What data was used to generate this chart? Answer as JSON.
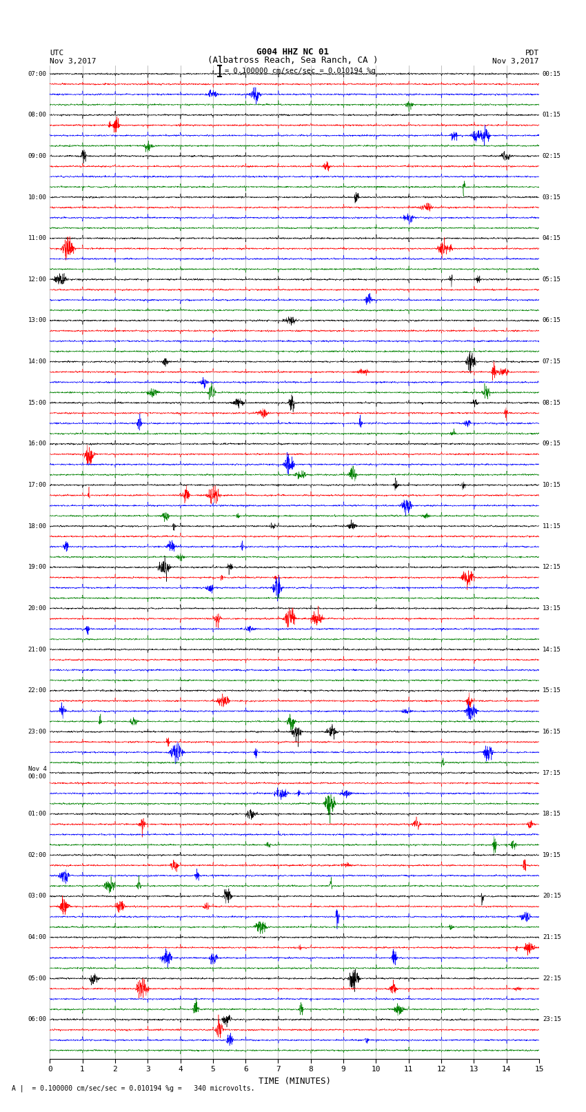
{
  "title_line1": "G004 HHZ NC 01",
  "title_line2": "(Albatross Reach, Sea Ranch, CA )",
  "scale_text": "= 0.100000 cm/sec/sec = 0.010194 %g",
  "footer_text": "= 0.100000 cm/sec/sec = 0.010194 %g =   340 microvolts.",
  "left_label_line1": "UTC",
  "left_label_line2": "Nov 3,2017",
  "right_label_line1": "PDT",
  "right_label_line2": "Nov 3,2017",
  "xlabel": "TIME (MINUTES)",
  "utc_hour_labels": [
    "07:00",
    "08:00",
    "09:00",
    "10:00",
    "11:00",
    "12:00",
    "13:00",
    "14:00",
    "15:00",
    "16:00",
    "17:00",
    "18:00",
    "19:00",
    "20:00",
    "21:00",
    "22:00",
    "23:00",
    "Nov 4\n00:00",
    "01:00",
    "02:00",
    "03:00",
    "04:00",
    "05:00",
    "06:00"
  ],
  "pdt_hour_labels": [
    "00:15",
    "01:15",
    "02:15",
    "03:15",
    "04:15",
    "05:15",
    "06:15",
    "07:15",
    "08:15",
    "09:15",
    "10:15",
    "11:15",
    "12:15",
    "13:15",
    "14:15",
    "15:15",
    "16:15",
    "17:15",
    "18:15",
    "19:15",
    "20:15",
    "21:15",
    "22:15",
    "23:15"
  ],
  "n_hours": 24,
  "traces_per_hour": 4,
  "n_points": 3000,
  "time_min": 0,
  "time_max": 15,
  "colors": [
    "black",
    "red",
    "blue",
    "green"
  ],
  "bg_color": "white",
  "trace_amplitude": 0.28,
  "xmin": 0,
  "xmax": 15,
  "xticks": [
    0,
    1,
    2,
    3,
    4,
    5,
    6,
    7,
    8,
    9,
    10,
    11,
    12,
    13,
    14,
    15
  ],
  "figwidth": 8.5,
  "figheight": 16.13,
  "dpi": 100
}
